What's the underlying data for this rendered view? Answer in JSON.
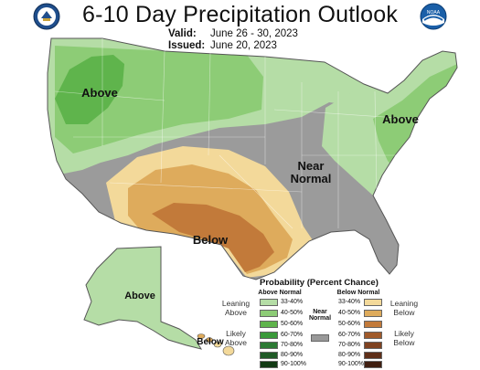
{
  "title": "6-10 Day Precipitation Outlook",
  "valid_label": "Valid:",
  "valid_dates": "June 26 - 30, 2023",
  "issued_label": "Issued:",
  "issued_date": "June 20, 2023",
  "logos": {
    "left": "doc-seal-icon",
    "right": "noaa-logo-icon",
    "right_text": "NOAA"
  },
  "map_labels": {
    "above_west": "Above",
    "above_east": "Above",
    "near_normal": "Near\nNormal",
    "below": "Below",
    "above_alaska": "Above",
    "below_alaska": "Below"
  },
  "legend": {
    "title": "Probability (Percent Chance)",
    "above_header": "Above Normal",
    "below_header": "Below Normal",
    "near_header": "Near\nNormal",
    "leaning_above": "Leaning\nAbove",
    "likely_above": "Likely\nAbove",
    "leaning_below": "Leaning\nBelow",
    "likely_below": "Likely\nBelow",
    "above_bins": [
      {
        "label": "33-40%",
        "color": "#b5dda6"
      },
      {
        "label": "40-50%",
        "color": "#8dcc76"
      },
      {
        "label": "50-60%",
        "color": "#5fb44c"
      },
      {
        "label": "60-70%",
        "color": "#3a9a3a"
      },
      {
        "label": "70-80%",
        "color": "#2c7a34"
      },
      {
        "label": "80-90%",
        "color": "#1f5a26"
      },
      {
        "label": "90-100%",
        "color": "#123a14"
      }
    ],
    "below_bins": [
      {
        "label": "33-40%",
        "color": "#f3d99a"
      },
      {
        "label": "40-50%",
        "color": "#deab5c"
      },
      {
        "label": "50-60%",
        "color": "#c27a3a"
      },
      {
        "label": "60-70%",
        "color": "#a05a2a"
      },
      {
        "label": "70-80%",
        "color": "#7f4220"
      },
      {
        "label": "80-90%",
        "color": "#5f2f18"
      },
      {
        "label": "90-100%",
        "color": "#3f1e10"
      }
    ],
    "near_color": "#999999"
  }
}
